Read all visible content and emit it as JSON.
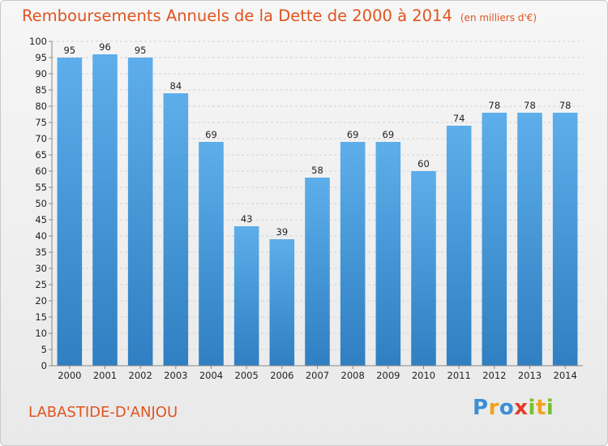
{
  "title": "Remboursements Annuels de la Dette de 2000 à 2014",
  "unit_note": "(en milliers d'€)",
  "location": "LABASTIDE-D'ANJOU",
  "logo": {
    "letters": [
      "P",
      "r",
      "o",
      "x",
      "i",
      "t",
      "i"
    ],
    "colors": [
      "#3a8fd6",
      "#f0a21d",
      "#3a8fd6",
      "#e23c2a",
      "#7bbf2a",
      "#f0a21d",
      "#7bbf2a"
    ]
  },
  "colors": {
    "title": "#e0541f",
    "bar_top": "#5daeea",
    "bar_bottom": "#2f7fc2"
  },
  "chart_data": {
    "type": "bar",
    "categories": [
      "2000",
      "2001",
      "2002",
      "2003",
      "2004",
      "2005",
      "2006",
      "2007",
      "2008",
      "2009",
      "2010",
      "2011",
      "2012",
      "2013",
      "2014"
    ],
    "values": [
      95,
      96,
      95,
      84,
      69,
      43,
      39,
      58,
      69,
      69,
      60,
      74,
      78,
      78,
      78
    ],
    "ylim": [
      0,
      100
    ],
    "yticks": [
      0,
      5,
      10,
      15,
      20,
      25,
      30,
      35,
      40,
      45,
      50,
      55,
      60,
      65,
      70,
      75,
      80,
      85,
      90,
      95,
      100
    ],
    "grid": true
  }
}
